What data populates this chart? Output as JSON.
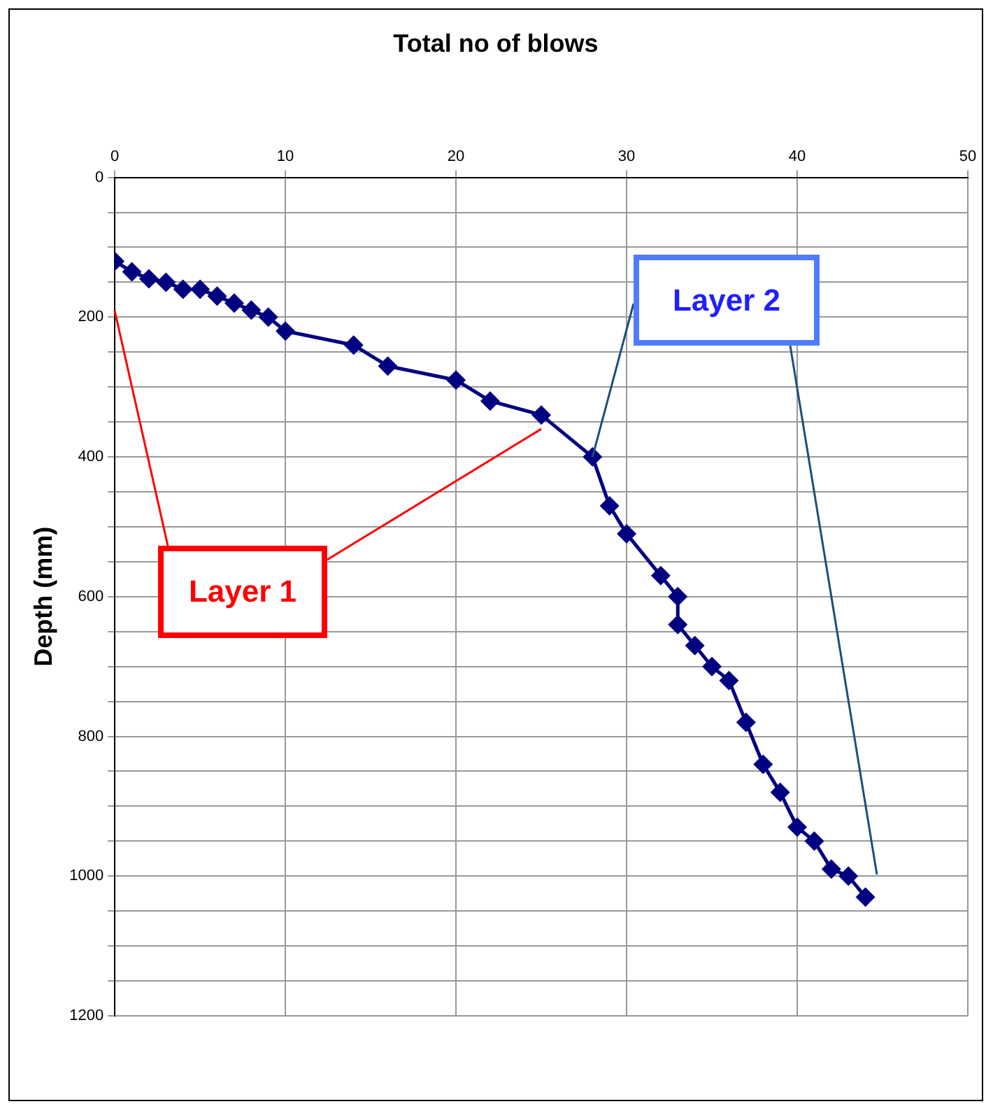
{
  "chart_data": {
    "type": "line",
    "title": "Total no of blows",
    "ylabel": "Depth (mm)",
    "x": [
      0,
      1,
      2,
      3,
      4,
      5,
      6,
      7,
      8,
      9,
      10,
      14,
      16,
      20,
      22,
      25,
      28,
      29,
      30,
      32,
      33,
      33,
      34,
      35,
      36,
      37,
      38,
      39,
      40,
      41,
      42,
      43,
      44
    ],
    "series": [
      {
        "color": "#000080",
        "values": [
          120,
          135,
          145,
          150,
          160,
          160,
          170,
          180,
          190,
          200,
          220,
          240,
          270,
          290,
          320,
          340,
          400,
          470,
          510,
          570,
          600,
          640,
          670,
          700,
          720,
          780,
          840,
          880,
          930,
          950,
          990,
          1000,
          1030
        ]
      }
    ],
    "xlim": [
      0,
      50
    ],
    "xticks": [
      0,
      10,
      20,
      30,
      40,
      50
    ],
    "ylim": [
      1200,
      0
    ],
    "yticks": [
      0,
      {
        "value": 50,
        "label": null
      },
      {
        "value": 100,
        "label": null
      },
      {
        "value": 150,
        "label": null
      },
      200,
      {
        "value": 250,
        "label": null
      },
      {
        "value": 300,
        "label": null
      },
      {
        "value": 350,
        "label": null
      },
      400,
      {
        "value": 450,
        "label": null
      },
      {
        "value": 500,
        "label": null
      },
      {
        "value": 550,
        "label": null
      },
      600,
      {
        "value": 650,
        "label": null
      },
      {
        "value": 700,
        "label": null
      },
      {
        "value": 750,
        "label": null
      },
      800,
      {
        "value": 850,
        "label": null
      },
      {
        "value": 900,
        "label": null
      },
      {
        "value": 950,
        "label": null
      },
      1000,
      {
        "value": 1050,
        "label": null
      },
      {
        "value": 1100,
        "label": null
      },
      {
        "value": 1150,
        "label": null
      },
      1200
    ],
    "grid": true,
    "legend": false,
    "marker": "diamond",
    "line_style": "solid",
    "annotations": [
      {
        "text": "Layer 1",
        "x": 25,
        "y": 360
      },
      {
        "text": "Layer 2",
        "x": 28,
        "y": 400
      }
    ]
  }
}
